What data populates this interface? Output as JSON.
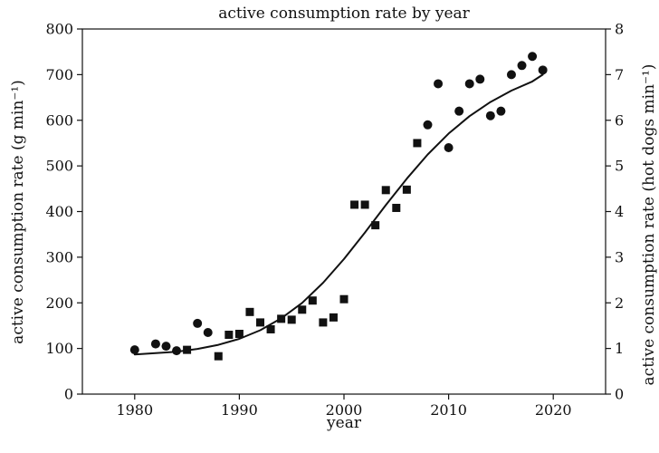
{
  "chart_data": {
    "type": "scatter",
    "title": "active consumption rate by year",
    "xlabel": "year",
    "ylabel_left": "active consumption rate (g min⁻¹)",
    "ylabel_right": "active consumption rate (hot dogs min⁻¹)",
    "xlim": [
      1975,
      2025
    ],
    "ylim_left": [
      0,
      800
    ],
    "ylim_right": [
      0,
      8
    ],
    "xticks": [
      "1980",
      "1990",
      "2000",
      "2010",
      "2020"
    ],
    "yticks_left": [
      "0",
      "100",
      "200",
      "300",
      "400",
      "500",
      "600",
      "700",
      "800"
    ],
    "yticks_right": [
      "0",
      "1",
      "2",
      "3",
      "4",
      "5",
      "6",
      "7",
      "8"
    ],
    "grid": false,
    "series": [
      {
        "marker": "circle",
        "points": [
          [
            1980,
            97
          ],
          [
            1982,
            110
          ],
          [
            1983,
            105
          ],
          [
            1984,
            95
          ],
          [
            1986,
            155
          ],
          [
            1987,
            135
          ],
          [
            2008,
            590
          ],
          [
            2009,
            680
          ],
          [
            2010,
            540
          ],
          [
            2011,
            620
          ],
          [
            2012,
            680
          ],
          [
            2013,
            690
          ],
          [
            2014,
            610
          ],
          [
            2015,
            620
          ],
          [
            2016,
            700
          ],
          [
            2017,
            720
          ],
          [
            2018,
            740
          ],
          [
            2019,
            710
          ]
        ]
      },
      {
        "marker": "square",
        "points": [
          [
            1985,
            97
          ],
          [
            1988,
            83
          ],
          [
            1989,
            130
          ],
          [
            1990,
            132
          ],
          [
            1991,
            180
          ],
          [
            1992,
            157
          ],
          [
            1993,
            142
          ],
          [
            1994,
            165
          ],
          [
            1995,
            163
          ],
          [
            1996,
            185
          ],
          [
            1997,
            205
          ],
          [
            1998,
            157
          ],
          [
            1999,
            168
          ],
          [
            2000,
            208
          ],
          [
            2001,
            415
          ],
          [
            2002,
            415
          ],
          [
            2003,
            370
          ],
          [
            2004,
            447
          ],
          [
            2005,
            408
          ],
          [
            2006,
            448
          ],
          [
            2007,
            550
          ]
        ]
      },
      {
        "type": "line",
        "style": "solid",
        "color": "#111111",
        "points": [
          [
            1980,
            87
          ],
          [
            1982,
            90
          ],
          [
            1984,
            93
          ],
          [
            1986,
            99
          ],
          [
            1988,
            108
          ],
          [
            1990,
            121
          ],
          [
            1992,
            140
          ],
          [
            1994,
            166
          ],
          [
            1996,
            200
          ],
          [
            1998,
            244
          ],
          [
            2000,
            296
          ],
          [
            2002,
            354
          ],
          [
            2004,
            414
          ],
          [
            2006,
            472
          ],
          [
            2008,
            525
          ],
          [
            2010,
            571
          ],
          [
            2012,
            609
          ],
          [
            2014,
            640
          ],
          [
            2016,
            665
          ],
          [
            2018,
            685
          ],
          [
            2019,
            700
          ]
        ]
      }
    ]
  }
}
